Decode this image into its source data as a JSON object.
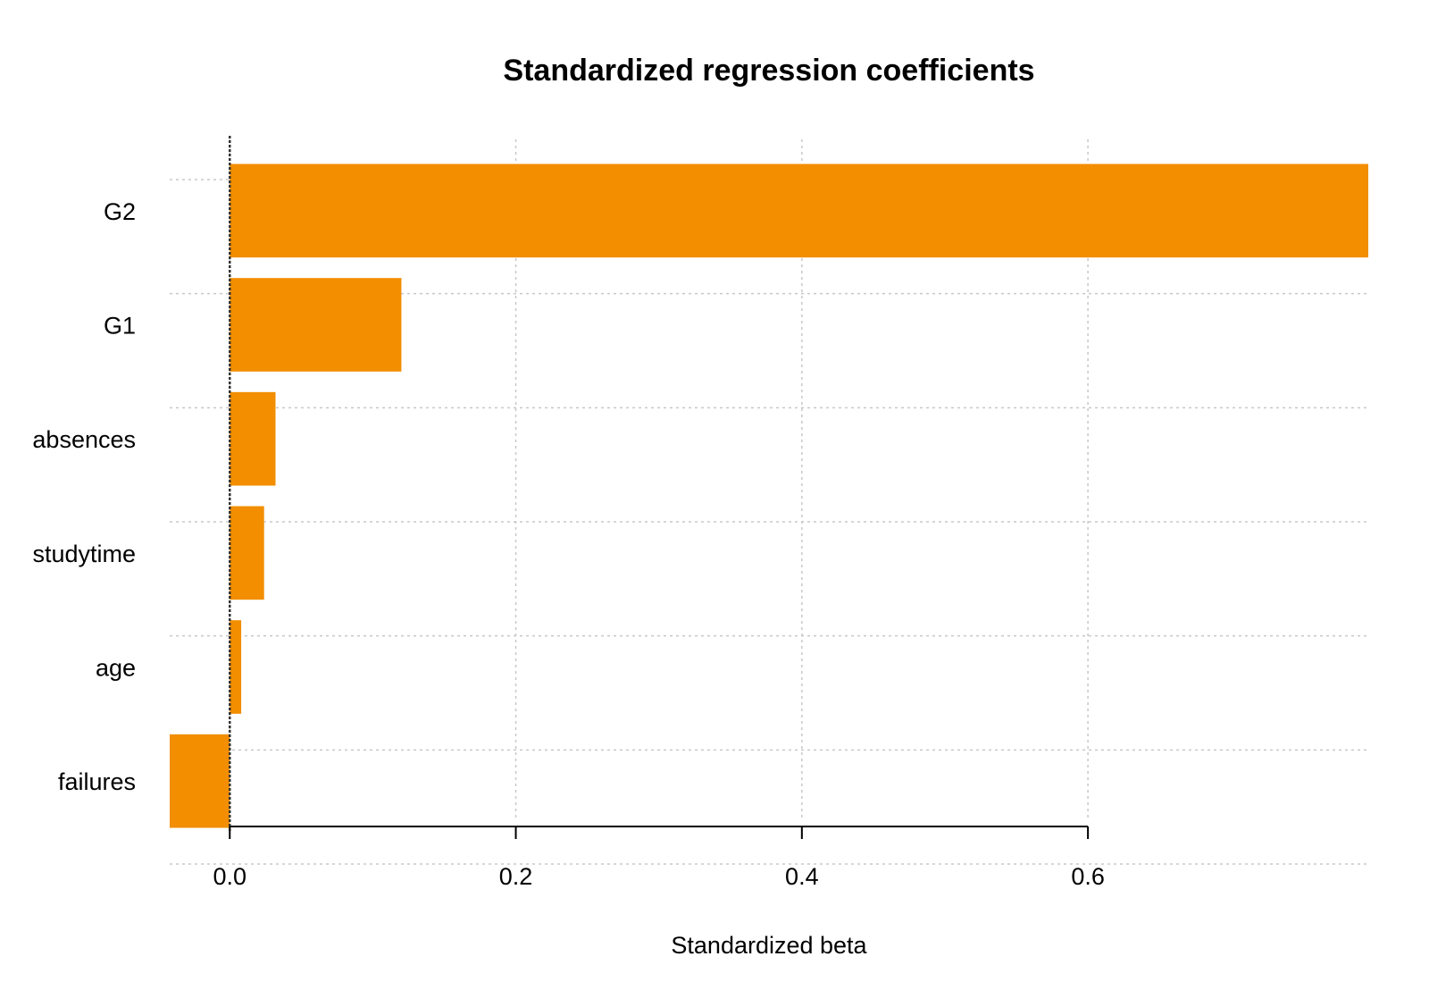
{
  "chart_data": {
    "type": "bar",
    "orientation": "horizontal",
    "title": "Standardized regression coefficients",
    "xlabel": "Standardized beta",
    "ylabel": "",
    "categories": [
      "G2",
      "G1",
      "absences",
      "studytime",
      "age",
      "failures"
    ],
    "values": [
      0.796,
      0.12,
      0.032,
      0.024,
      0.008,
      -0.042
    ],
    "xlim": [
      -0.042,
      0.796
    ],
    "x_ticks": [
      {
        "value": 0.0,
        "label": "0.0"
      },
      {
        "value": 0.2,
        "label": "0.2"
      },
      {
        "value": 0.4,
        "label": "0.4"
      },
      {
        "value": 0.6,
        "label": "0.6"
      }
    ],
    "grid": true,
    "legend": "none",
    "bar_color": "#F28E00",
    "zero_line": true
  }
}
